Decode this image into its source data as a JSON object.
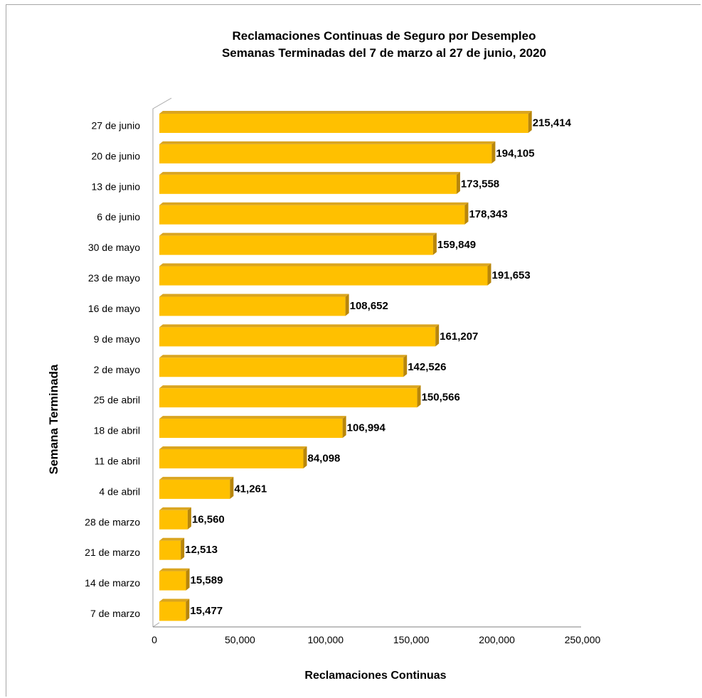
{
  "chart_data": {
    "type": "bar",
    "orientation": "horizontal",
    "title": [
      "Reclamaciones  Continuas de Seguro por Desempleo",
      "Semanas Terminadas  del  7 de marzo al 27 de junio, 2020"
    ],
    "xlabel": "Reclamaciones  Continuas",
    "ylabel": "Semana Terminada",
    "xlim": [
      0,
      250000
    ],
    "xticks": [
      0,
      50000,
      100000,
      150000,
      200000,
      250000
    ],
    "xtick_labels": [
      "0",
      "50,000",
      "100,000",
      "150,000",
      "200,000",
      "250,000"
    ],
    "grid": false,
    "legend": "none",
    "bar_color": "#FFC000",
    "bar_side_color": "#B8860B",
    "categories": [
      "27 de junio",
      "20 de junio",
      "13 de junio",
      "6 de junio",
      "30 de mayo",
      "23 de mayo",
      "16 de mayo",
      "9 de mayo",
      "2 de mayo",
      "25 de abril",
      "18 de abril",
      "11 de abril",
      "4 de abril",
      "28 de marzo",
      "21 de  marzo",
      "14 de marzo",
      "7 de marzo"
    ],
    "values": [
      215414,
      194105,
      173558,
      178343,
      159849,
      191653,
      108652,
      161207,
      142526,
      150566,
      106994,
      84098,
      41261,
      16560,
      12513,
      15589,
      15477
    ],
    "value_labels": [
      "215,414",
      "194,105",
      "173,558",
      "178,343",
      "159,849",
      "191,653",
      "108,652",
      "161,207",
      "142,526",
      "150,566",
      "106,994",
      "84,098",
      "41,261",
      "16,560",
      "12,513",
      "15,589",
      "15,477"
    ]
  }
}
